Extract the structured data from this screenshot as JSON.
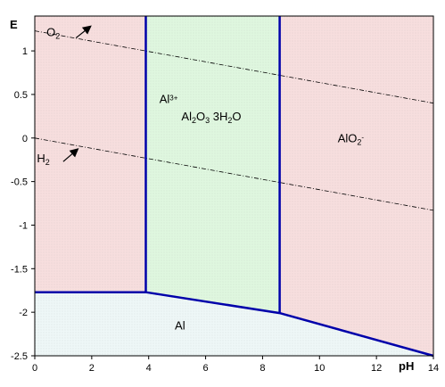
{
  "chart_data": {
    "type": "area",
    "xlabel": "pH",
    "ylabel": "E",
    "xlim": [
      0,
      14
    ],
    "ylim": [
      -2.5,
      1.4
    ],
    "x_ticks": [
      0,
      2,
      4,
      6,
      8,
      10,
      12,
      14
    ],
    "y_ticks": [
      1,
      0.5,
      0,
      -0.5,
      -1,
      -1.5,
      -2,
      -2.5
    ],
    "x_tick_labels": [
      "0",
      "2",
      "4",
      "6",
      "8",
      "10",
      "12",
      "14"
    ],
    "y_tick_labels": [
      "1",
      "0.5",
      "0",
      "-0.5",
      "-1",
      "-1.5",
      "-2",
      "-2.5"
    ],
    "grid": false,
    "colors": {
      "al3": "#f7dede",
      "hydroxide": "#dff7df",
      "alo2": "#f7dede",
      "al": "#eef7f7",
      "boundary": "#0000aa",
      "water_line": "#000000"
    },
    "regions": [
      {
        "key": "al3",
        "label": "Al",
        "superscript": "3+",
        "polygon": [
          [
            0,
            1.4
          ],
          [
            3.9,
            1.4
          ],
          [
            3.9,
            -1.77
          ],
          [
            0,
            -1.77
          ]
        ],
        "label_at": [
          4.7,
          0.4
        ]
      },
      {
        "key": "hydroxide",
        "label_parts": [
          {
            "t": "Al"
          },
          {
            "t": "2",
            "sub": true
          },
          {
            "t": "O"
          },
          {
            "t": "3",
            "sub": true
          },
          {
            "t": " 3H"
          },
          {
            "t": "2",
            "sub": true
          },
          {
            "t": "O"
          }
        ],
        "polygon": [
          [
            3.9,
            1.4
          ],
          [
            8.6,
            1.4
          ],
          [
            8.6,
            -2.01
          ],
          [
            3.9,
            -1.77
          ]
        ],
        "label_at": [
          6.2,
          0.2
        ]
      },
      {
        "key": "alo2",
        "label_parts": [
          {
            "t": "AlO"
          },
          {
            "t": "2",
            "sub": true
          },
          {
            "t": "-",
            "sup": true
          }
        ],
        "polygon": [
          [
            8.6,
            1.4
          ],
          [
            14,
            1.4
          ],
          [
            14,
            -2.5
          ],
          [
            8.6,
            -2.01
          ]
        ],
        "label_at": [
          11.1,
          -0.05
        ]
      },
      {
        "key": "al",
        "label": "Al",
        "polygon": [
          [
            0,
            -1.77
          ],
          [
            3.9,
            -1.77
          ],
          [
            8.6,
            -2.01
          ],
          [
            14,
            -2.5
          ],
          [
            0,
            -2.5
          ]
        ],
        "label_at": [
          5.1,
          -2.2
        ]
      }
    ],
    "boundaries": [
      {
        "points": [
          [
            3.9,
            1.4
          ],
          [
            3.9,
            -1.77
          ]
        ]
      },
      {
        "points": [
          [
            8.6,
            1.4
          ],
          [
            8.6,
            -2.01
          ]
        ]
      },
      {
        "points": [
          [
            0,
            -1.77
          ],
          [
            3.9,
            -1.77
          ],
          [
            8.6,
            -2.01
          ],
          [
            14,
            -2.5
          ]
        ]
      }
    ],
    "water_lines": [
      {
        "name": "O2",
        "label_parts": [
          {
            "t": "O"
          },
          {
            "t": "2",
            "sub": true
          }
        ],
        "points": [
          [
            0,
            1.23
          ],
          [
            14,
            0.4
          ]
        ],
        "label_at": [
          0.65,
          1.17
        ],
        "arrow": [
          [
            1.45,
            1.15
          ],
          [
            1.95,
            1.28
          ]
        ]
      },
      {
        "name": "H2",
        "label_parts": [
          {
            "t": "H"
          },
          {
            "t": "2",
            "sub": true
          }
        ],
        "points": [
          [
            0,
            0
          ],
          [
            14,
            -0.83
          ]
        ],
        "label_at": [
          0.3,
          -0.28
        ],
        "arrow": [
          [
            1.0,
            -0.27
          ],
          [
            1.5,
            -0.13
          ]
        ]
      }
    ]
  }
}
